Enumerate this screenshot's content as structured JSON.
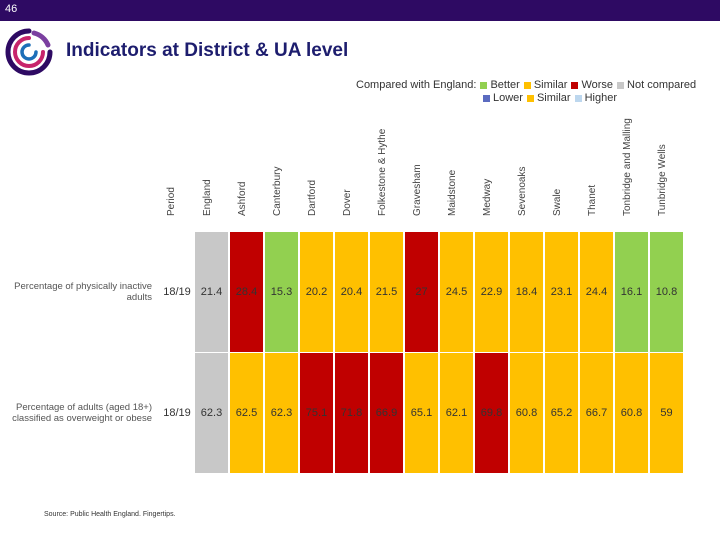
{
  "slide": {
    "number": "46"
  },
  "title": "Indicators at District & UA level",
  "legend": {
    "prefix": "Compared with England:",
    "row1": [
      {
        "label": "Better",
        "color": "#92d050"
      },
      {
        "label": "Similar",
        "color": "#ffc000"
      },
      {
        "label": "Worse",
        "color": "#c00000"
      },
      {
        "label": "Not compared",
        "color": "#c8c8c8"
      }
    ],
    "row2": [
      {
        "label": "Lower",
        "color": "#5b6bc0"
      },
      {
        "label": "Similar",
        "color": "#ffc000"
      },
      {
        "label": "Higher",
        "color": "#bdd7ee"
      }
    ]
  },
  "columns": {
    "period": "Period",
    "areas": [
      "England",
      "Ashford",
      "Canterbury",
      "Dartford",
      "Dover",
      "Folkestone & Hythe",
      "Gravesham",
      "Maidstone",
      "Medway",
      "Sevenoaks",
      "Swale",
      "Thanet",
      "Tonbridge and Malling",
      "Tunbridge Wells"
    ]
  },
  "rows": [
    {
      "label": "Percentage of physically inactive adults",
      "period": "18/19",
      "values": [
        "21.4",
        "28.4",
        "15.3",
        "20.2",
        "20.4",
        "21.5",
        "27",
        "24.5",
        "22.9",
        "18.4",
        "23.1",
        "24.4",
        "16.1",
        "10.8"
      ],
      "status": [
        "grey",
        "red",
        "green",
        "amber",
        "amber",
        "amber",
        "red",
        "amber",
        "amber",
        "amber",
        "amber",
        "amber",
        "green",
        "green"
      ]
    },
    {
      "label": "Percentage of adults (aged 18+) classified as overweight or obese",
      "period": "18/19",
      "values": [
        "62.3",
        "62.5",
        "62.3",
        "75.1",
        "71.8",
        "66.9",
        "65.1",
        "62.1",
        "69.8",
        "60.8",
        "65.2",
        "66.7",
        "60.8",
        "59"
      ],
      "status": [
        "grey",
        "amber",
        "amber",
        "red",
        "red",
        "red",
        "amber",
        "amber",
        "red",
        "amber",
        "amber",
        "amber",
        "amber",
        "amber"
      ]
    }
  ],
  "source": "Source: Public Health England. Fingertips."
}
